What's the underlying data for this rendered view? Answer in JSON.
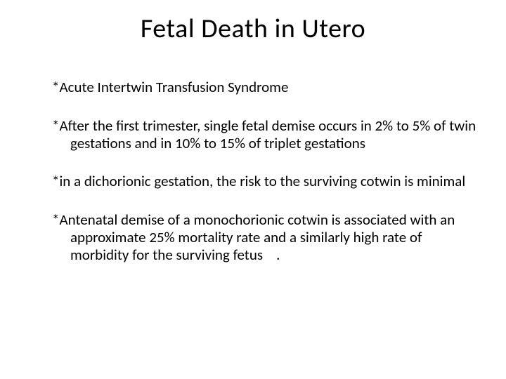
{
  "slide": {
    "title": "Fetal Death in Utero",
    "bullets": [
      "*Acute Intertwin Transfusion Syndrome",
      "*After the first trimester, single fetal demise occurs in 2% to 5% of twin gestations and in 10% to 15% of triplet gestations",
      "*in a dichorionic gestation, the risk to the surviving cotwin is minimal",
      "*Antenatal demise of a monochorionic cotwin is associated with an approximate 25% mortality rate and a similarly high rate of morbidity for the surviving fetus    ."
    ]
  },
  "style": {
    "background_color": "#ffffff",
    "text_color": "#000000",
    "title_fontsize": 38,
    "body_fontsize": 21,
    "font_family": "Calibri"
  }
}
